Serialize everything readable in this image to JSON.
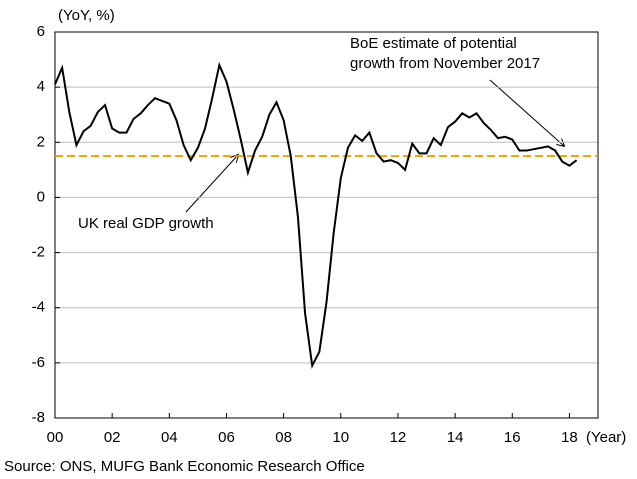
{
  "chart_data": {
    "type": "line",
    "y_unit_label": "(YoY, %)",
    "x_unit_label": "(Year)",
    "source": "Source: ONS, MUFG Bank Economic Research Office",
    "x": [
      2000,
      2000.25,
      2000.5,
      2000.75,
      2001,
      2001.25,
      2001.5,
      2001.75,
      2002,
      2002.25,
      2002.5,
      2002.75,
      2003,
      2003.25,
      2003.5,
      2003.75,
      2004,
      2004.25,
      2004.5,
      2004.75,
      2005,
      2005.25,
      2005.5,
      2005.75,
      2006,
      2006.25,
      2006.5,
      2006.75,
      2007,
      2007.25,
      2007.5,
      2007.75,
      2008,
      2008.25,
      2008.5,
      2008.75,
      2009,
      2009.25,
      2009.5,
      2009.75,
      2010,
      2010.25,
      2010.5,
      2010.75,
      2011,
      2011.25,
      2011.5,
      2011.75,
      2012,
      2012.25,
      2012.5,
      2012.75,
      2013,
      2013.25,
      2013.5,
      2013.75,
      2014,
      2014.25,
      2014.5,
      2014.75,
      2015,
      2015.25,
      2015.5,
      2015.75,
      2016,
      2016.25,
      2016.5,
      2016.75,
      2017,
      2017.25,
      2017.5,
      2017.75,
      2018,
      2018.25
    ],
    "series": [
      {
        "name": "UK real GDP growth",
        "color": "#000000",
        "values": [
          4.1,
          4.7,
          3.1,
          1.9,
          2.4,
          2.6,
          3.1,
          3.35,
          2.5,
          2.35,
          2.35,
          2.85,
          3.05,
          3.35,
          3.6,
          3.5,
          3.4,
          2.8,
          1.9,
          1.35,
          1.8,
          2.5,
          3.6,
          4.8,
          4.2,
          3.2,
          2.1,
          0.9,
          1.7,
          2.2,
          3.0,
          3.45,
          2.8,
          1.5,
          -0.7,
          -4.2,
          -6.1,
          -5.6,
          -3.8,
          -1.3,
          0.7,
          1.8,
          2.25,
          2.05,
          2.35,
          1.6,
          1.3,
          1.35,
          1.25,
          1.0,
          1.95,
          1.6,
          1.6,
          2.15,
          1.9,
          2.55,
          2.75,
          3.05,
          2.9,
          3.05,
          2.7,
          2.45,
          2.15,
          2.2,
          2.1,
          1.7,
          1.7,
          1.75,
          1.8,
          1.85,
          1.7,
          1.3,
          1.15,
          1.35
        ]
      }
    ],
    "reference_line": {
      "label_lines": [
        "BoE estimate of potential",
        "growth from November 2017"
      ],
      "value": 1.5,
      "color": "#e8a10c",
      "dashed": true
    },
    "xlim": [
      2000,
      2019
    ],
    "xticks": [
      {
        "value": 2000,
        "label": "00"
      },
      {
        "value": 2002,
        "label": "02"
      },
      {
        "value": 2004,
        "label": "04"
      },
      {
        "value": 2006,
        "label": "06"
      },
      {
        "value": 2008,
        "label": "08"
      },
      {
        "value": 2010,
        "label": "10"
      },
      {
        "value": 2012,
        "label": "12"
      },
      {
        "value": 2014,
        "label": "14"
      },
      {
        "value": 2016,
        "label": "16"
      },
      {
        "value": 2018,
        "label": "18"
      }
    ],
    "ylim": [
      -8,
      6
    ],
    "yticks": [
      -8,
      -6,
      -4,
      -2,
      0,
      2,
      4,
      6
    ],
    "grid": true
  }
}
